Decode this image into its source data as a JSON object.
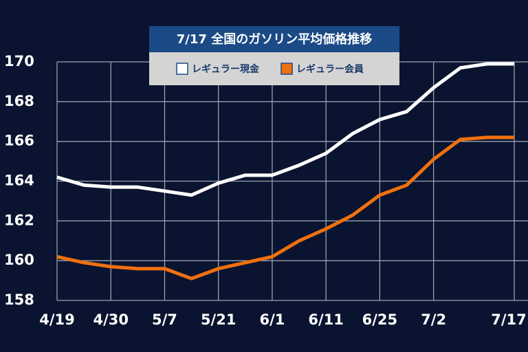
{
  "chart_data": {
    "type": "line",
    "title": "7/17  全国のガソリン平均価格推移",
    "categories": [
      "4/19",
      null,
      "4/30",
      null,
      "5/7",
      null,
      "5/21",
      null,
      "6/1",
      null,
      "6/11",
      null,
      "6/25",
      null,
      "7/2",
      null,
      null,
      "7/17"
    ],
    "series": [
      {
        "name": "レギュラー現金",
        "color": "#ffffff",
        "values": [
          164.2,
          163.8,
          163.7,
          163.7,
          163.5,
          163.3,
          163.9,
          164.3,
          164.3,
          164.8,
          165.4,
          166.4,
          167.1,
          167.5,
          168.7,
          169.7,
          169.9,
          169.9
        ]
      },
      {
        "name": "レギュラー会員",
        "color": "#f07010",
        "values": [
          160.2,
          159.9,
          159.7,
          159.6,
          159.6,
          159.1,
          159.6,
          159.9,
          160.2,
          161.0,
          161.6,
          162.3,
          163.3,
          163.8,
          165.1,
          166.1,
          166.2,
          166.2
        ]
      }
    ],
    "ylim": [
      158,
      170
    ],
    "yticks": [
      158,
      160,
      162,
      164,
      166,
      168,
      170
    ],
    "grid": true
  }
}
